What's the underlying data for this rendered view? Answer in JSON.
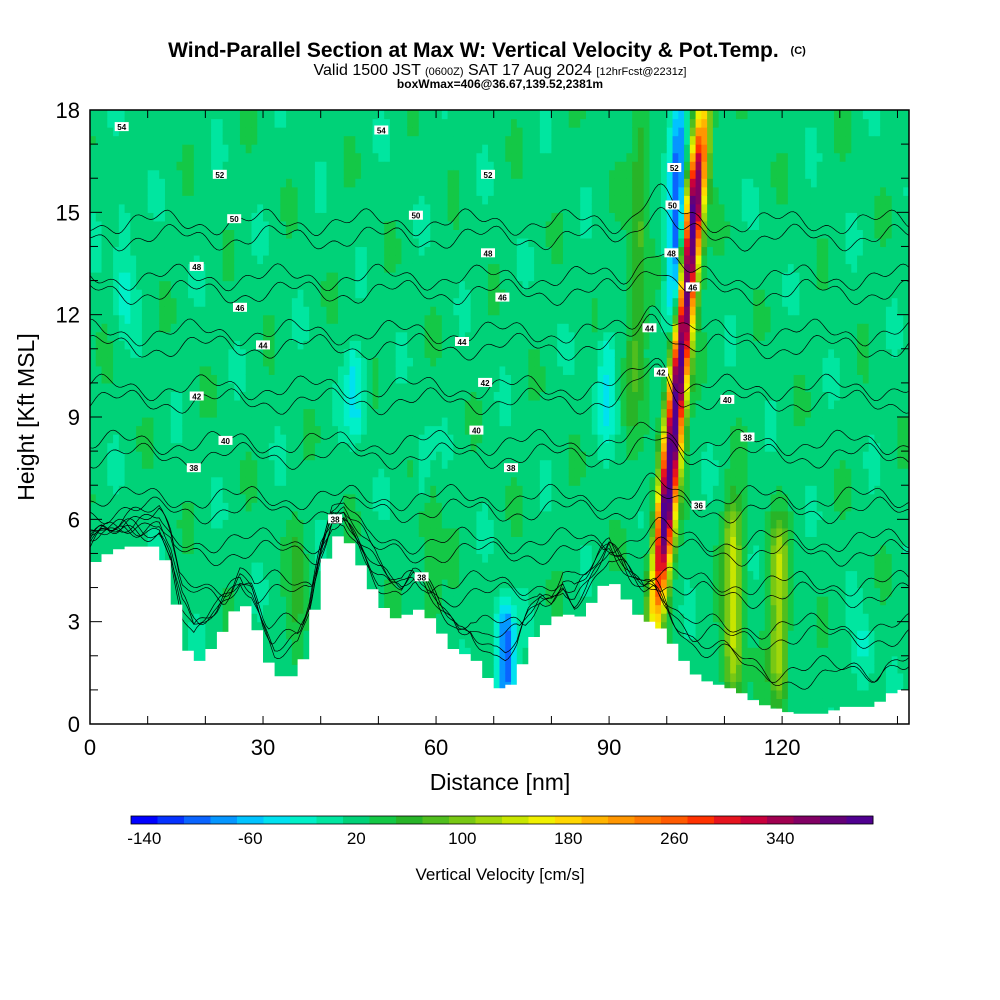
{
  "title": {
    "main": "Wind-Parallel Section at Max W: Vertical Velocity & Pot.Temp.",
    "mark": "(C)",
    "valid_prefix": "Valid 1500 JST",
    "valid_z": "(0600Z)",
    "valid_date": "SAT 17 Aug 2024",
    "forecast": "[12hrFcst@2231z]",
    "box": "boxWmax=406@36.67,139.52,2381m"
  },
  "chart_data": {
    "type": "heatmap",
    "xlabel": "Distance [nm]",
    "ylabel": "Height [Kft MSL]",
    "xlim": [
      0,
      142
    ],
    "ylim": [
      0,
      18
    ],
    "x_ticks": [
      0,
      30,
      60,
      90,
      120
    ],
    "y_ticks": [
      0,
      3,
      6,
      9,
      12,
      15,
      18
    ],
    "x_tick_labels": [
      "0",
      "30",
      "60",
      "90",
      "120"
    ],
    "y_tick_labels": [
      "0",
      "3",
      "6",
      "9",
      "12",
      "15",
      "18"
    ],
    "background_velocity": 20,
    "terrain": {
      "x": [
        0,
        2,
        6,
        12,
        14,
        16,
        18,
        20,
        22,
        24,
        26,
        28,
        30,
        32,
        34,
        36,
        38,
        40,
        42,
        44,
        46,
        48,
        50,
        52,
        54,
        56,
        58,
        60,
        62,
        64,
        66,
        68,
        70,
        72,
        74,
        76,
        78,
        80,
        82,
        84,
        86,
        88,
        90,
        92,
        94,
        96,
        98,
        100,
        102,
        104,
        106,
        108,
        110,
        112,
        114,
        116,
        118,
        120,
        122,
        124,
        126,
        128,
        130,
        132,
        134,
        136,
        138,
        140,
        142
      ],
      "y": [
        4.6,
        4.9,
        5.2,
        5.2,
        4.4,
        2.6,
        1.7,
        2.0,
        2.4,
        3.0,
        3.6,
        3.3,
        2.2,
        1.4,
        1.4,
        1.4,
        2.4,
        4.3,
        5.4,
        5.6,
        5.0,
        4.3,
        3.6,
        3.2,
        3.0,
        3.4,
        3.3,
        2.9,
        2.4,
        2.0,
        2.1,
        1.6,
        1.1,
        1.0,
        1.3,
        2.2,
        2.9,
        2.9,
        3.4,
        3.0,
        3.3,
        3.8,
        4.3,
        3.9,
        3.4,
        3.0,
        3.0,
        2.6,
        2.1,
        1.6,
        1.3,
        1.2,
        1.1,
        1.0,
        0.8,
        0.6,
        0.5,
        0.4,
        0.3,
        0.3,
        0.3,
        0.3,
        0.5,
        0.5,
        0.5,
        0.5,
        0.8,
        1.0,
        1.0
      ]
    },
    "updrafts": [
      {
        "x": 98.2,
        "y_bottom": 3.2,
        "y_top": 18,
        "peak": 406,
        "lean": 0.55
      },
      {
        "x": 111.5,
        "y_bottom": 1.0,
        "y_top": 6.2,
        "peak": 120,
        "lean": 0.0
      },
      {
        "x": 119.5,
        "y_bottom": 1.0,
        "y_top": 5.5,
        "peak": 110,
        "lean": 0.0
      },
      {
        "x": 94.0,
        "y_bottom": 9.0,
        "y_top": 18,
        "peak": 60,
        "lean": 0.2
      },
      {
        "x": 59.0,
        "y_bottom": 3.0,
        "y_top": 7.5,
        "peak": 40,
        "lean": 0.0
      },
      {
        "x": 36.0,
        "y_bottom": 1.6,
        "y_top": 5.5,
        "peak": 38,
        "lean": 0.0
      }
    ],
    "downdrafts": [
      {
        "x": 101.5,
        "y_bottom": 11.5,
        "y_top": 18,
        "peak": -130,
        "lean": 0.1
      },
      {
        "x": 72.0,
        "y_bottom": 1.0,
        "y_top": 3.0,
        "peak": -120,
        "lean": 0.0
      },
      {
        "x": 89.5,
        "y_bottom": 9.0,
        "y_top": 11.0,
        "peak": -45,
        "lean": 0.0
      },
      {
        "x": 46.0,
        "y_bottom": 9.0,
        "y_top": 10.5,
        "peak": -50,
        "lean": 0.0
      },
      {
        "x": 58.0,
        "y_bottom": 7.0,
        "y_top": 8.0,
        "peak": -35,
        "lean": 0.0
      },
      {
        "x": 6.0,
        "y_bottom": 12.0,
        "y_top": 15.0,
        "peak": -30,
        "lean": 0.0
      },
      {
        "x": 134.0,
        "y_bottom": 1.5,
        "y_top": 2.5,
        "peak": -30,
        "lean": 0.0
      }
    ],
    "theta_contours": {
      "levels": [
        36,
        38,
        40,
        42,
        44,
        46,
        48,
        50,
        52,
        54
      ],
      "labels": [
        {
          "text": "54",
          "x": 5.5,
          "y": 17.5
        },
        {
          "text": "54",
          "x": 50.5,
          "y": 17.4
        },
        {
          "text": "52",
          "x": 22.5,
          "y": 16.1
        },
        {
          "text": "52",
          "x": 69.0,
          "y": 16.1
        },
        {
          "text": "52",
          "x": 101.3,
          "y": 16.3
        },
        {
          "text": "50",
          "x": 25.0,
          "y": 14.8
        },
        {
          "text": "50",
          "x": 56.5,
          "y": 14.9
        },
        {
          "text": "50",
          "x": 101.0,
          "y": 15.2
        },
        {
          "text": "48",
          "x": 18.5,
          "y": 13.4
        },
        {
          "text": "48",
          "x": 69.0,
          "y": 13.8
        },
        {
          "text": "48",
          "x": 100.8,
          "y": 13.8
        },
        {
          "text": "46",
          "x": 26.0,
          "y": 12.2
        },
        {
          "text": "46",
          "x": 71.5,
          "y": 12.5
        },
        {
          "text": "46",
          "x": 104.5,
          "y": 12.8
        },
        {
          "text": "44",
          "x": 30.0,
          "y": 11.1
        },
        {
          "text": "44",
          "x": 64.5,
          "y": 11.2
        },
        {
          "text": "44",
          "x": 97.0,
          "y": 11.6
        },
        {
          "text": "42",
          "x": 18.5,
          "y": 9.6
        },
        {
          "text": "42",
          "x": 68.5,
          "y": 10.0
        },
        {
          "text": "42",
          "x": 99.0,
          "y": 10.3
        },
        {
          "text": "40",
          "x": 23.5,
          "y": 8.3
        },
        {
          "text": "40",
          "x": 67.0,
          "y": 8.6
        },
        {
          "text": "40",
          "x": 110.5,
          "y": 9.5
        },
        {
          "text": "38",
          "x": 18.0,
          "y": 7.5
        },
        {
          "text": "38",
          "x": 73.0,
          "y": 7.5
        },
        {
          "text": "38",
          "x": 114.0,
          "y": 8.4
        },
        {
          "text": "38",
          "x": 42.5,
          "y": 6.0
        },
        {
          "text": "38",
          "x": 57.5,
          "y": 4.3
        },
        {
          "text": "36",
          "x": 105.5,
          "y": 6.4
        }
      ]
    },
    "colorbar": {
      "label": "Vertical Velocity [cm/s]",
      "tick_labels": [
        "-140",
        "-60",
        "20",
        "100",
        "180",
        "260",
        "340"
      ],
      "tick_values": [
        -140,
        -60,
        20,
        100,
        180,
        260,
        340
      ],
      "range": [
        -150,
        410
      ],
      "colors": [
        "#0000ff",
        "#0532ff",
        "#0a64ff",
        "#0596ff",
        "#00c3ff",
        "#00e1f0",
        "#00f0c8",
        "#00e6a0",
        "#00d278",
        "#14c846",
        "#28b428",
        "#50be1e",
        "#78c814",
        "#a0d70a",
        "#c8e600",
        "#f0f000",
        "#ffd700",
        "#ffb400",
        "#ff9600",
        "#ff7800",
        "#ff5a00",
        "#ff3200",
        "#e6141e",
        "#c8003c",
        "#a00050",
        "#820064",
        "#640078",
        "#500090"
      ]
    }
  }
}
